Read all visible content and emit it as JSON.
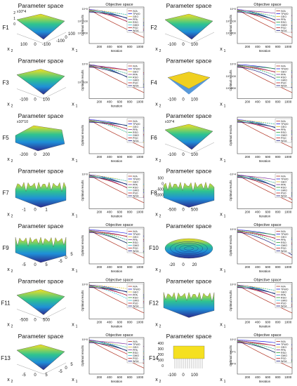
{
  "legend": [
    "IVIA",
    "TFWO",
    "GEO",
    "PPA",
    "RSO",
    "GWO",
    "PSO",
    "WOA"
  ],
  "colors": {
    "IVIA": "#b03020",
    "TFWO": "#2020e0",
    "GEO": "#e0c020",
    "PPA": "#8030a0",
    "RSO": "#30a030",
    "GWO": "#20c0e0",
    "PSO": "#c02020",
    "WOA": "#1a1a80"
  },
  "chart_data": [
    {
      "function": "F1",
      "surface_title": "Parameter space",
      "objective_title": "Objective space",
      "zscale": "x10^4",
      "zticks": [
        "2",
        "1",
        "0"
      ],
      "xticks": [
        "100",
        "0",
        "-100"
      ],
      "yticks": [
        "-100",
        "0",
        "100"
      ],
      "xlabel": "x2",
      "ylabel": "x1",
      "ytick_labels": [
        "10^0",
        "10^-100",
        "10^-200"
      ],
      "xtick_labels": [
        "200",
        "400",
        "600",
        "800",
        "1000"
      ],
      "ylabel_obj": "Optimal results",
      "xlabel_obj": "Iteration",
      "show_legend": true
    },
    {
      "function": "F2",
      "surface_title": "Parameter space",
      "objective_title": "Objective space",
      "zscale": "",
      "zticks": [],
      "xticks": [
        "-100",
        "0",
        "100"
      ],
      "yticks": [],
      "xlabel": "x2",
      "ylabel": "x1",
      "ytick_labels": [
        "10^0",
        "10^-100",
        "10^-200"
      ],
      "xtick_labels": [
        "200",
        "400",
        "600",
        "800",
        "1000"
      ],
      "ylabel_obj": "Optimal results",
      "xlabel_obj": "Iteration",
      "show_legend": true
    },
    {
      "function": "F3",
      "surface_title": "Parameter space",
      "objective_title": "",
      "zscale": "",
      "zticks": [],
      "xticks": [
        "-100",
        "0",
        "100"
      ],
      "yticks": [],
      "xlabel": "x2",
      "ylabel": "x1",
      "ytick_labels": [
        "10^0",
        "10^-100"
      ],
      "xtick_labels": [
        "200",
        "400",
        "600",
        "800",
        "1000"
      ],
      "ylabel_obj": "Optimal results",
      "xlabel_obj": "Iteration",
      "show_legend": true
    },
    {
      "function": "F4",
      "surface_title": "Parameter space",
      "objective_title": "",
      "zscale": "",
      "zticks": [],
      "xticks": [
        "-100",
        "0",
        "100"
      ],
      "yticks": [],
      "xlabel": "x2",
      "ylabel": "x1",
      "ytick_labels": [
        "10^0",
        "10^-100",
        "10^-200"
      ],
      "xtick_labels": [
        "200",
        "400",
        "600",
        "800",
        "1000"
      ],
      "ylabel_obj": "Optimal results",
      "xlabel_obj": "",
      "show_legend": true
    },
    {
      "function": "F5",
      "surface_title": "Parameter space",
      "objective_title": "",
      "zscale": "x10^10",
      "zticks": [],
      "xticks": [
        "-200",
        "0",
        "200"
      ],
      "yticks": [],
      "xlabel": "x2",
      "ylabel": "x1",
      "ytick_labels": [],
      "xtick_labels": [
        "200",
        "400",
        "600",
        "800",
        "1000"
      ],
      "ylabel_obj": "Optimal results",
      "xlabel_obj": "Iteration",
      "show_legend": true
    },
    {
      "function": "F6",
      "surface_title": "Parameter space",
      "objective_title": "",
      "zscale": "x10^4",
      "zticks": [],
      "xticks": [
        "-100",
        "0",
        "100"
      ],
      "yticks": [],
      "xlabel": "x2",
      "ylabel": "x1",
      "ytick_labels": [],
      "xtick_labels": [
        "200",
        "400",
        "600",
        "800",
        "1000"
      ],
      "ylabel_obj": "Optimal results",
      "xlabel_obj": "Iteration",
      "show_legend": true
    },
    {
      "function": "F7",
      "surface_title": "Parameter space",
      "objective_title": "",
      "zscale": "",
      "zticks": [],
      "xticks": [
        "-1",
        "0",
        "1"
      ],
      "yticks": [],
      "xlabel": "x2",
      "ylabel": "x1",
      "ytick_labels": [
        "10^0"
      ],
      "xtick_labels": [
        "200",
        "400",
        "600",
        "800",
        "1000"
      ],
      "ylabel_obj": "Optimal results",
      "xlabel_obj": "Iteration",
      "show_legend": true
    },
    {
      "function": "F8",
      "surface_title": "Parameter space",
      "objective_title": "",
      "zscale": "",
      "zticks": [
        "500",
        "0",
        "-500",
        "-1000"
      ],
      "xticks": [
        "-500",
        "0",
        "500"
      ],
      "yticks": [],
      "xlabel": "x2",
      "ylabel": "x1",
      "ytick_labels": [
        "-10^4"
      ],
      "xtick_labels": [
        "200",
        "400",
        "600",
        "800",
        "1000"
      ],
      "ylabel_obj": "Optimal results",
      "xlabel_obj": "Iteration",
      "show_legend": true
    },
    {
      "function": "F9",
      "surface_title": "Parameter space",
      "objective_title": "Objective space",
      "zscale": "",
      "zticks": [],
      "xticks": [
        "-5",
        "0",
        "5"
      ],
      "yticks": [
        "-5",
        "0",
        "5"
      ],
      "xlabel": "x2",
      "ylabel": "x1",
      "ytick_labels": [],
      "xtick_labels": [
        "200",
        "400",
        "600",
        "800",
        "1000"
      ],
      "ylabel_obj": "Optimal results",
      "xlabel_obj": "Iteration",
      "show_legend": true
    },
    {
      "function": "F10",
      "surface_title": "Parameter space",
      "objective_title": "Objective space",
      "zscale": "",
      "zticks": [],
      "xticks": [
        "-20",
        "0",
        "20"
      ],
      "yticks": [],
      "xlabel": "x2",
      "ylabel": "x1",
      "ytick_labels": [
        "10^0"
      ],
      "xtick_labels": [
        "200",
        "400",
        "600",
        "800",
        "1000"
      ],
      "ylabel_obj": "Optimal results",
      "xlabel_obj": "Iteration",
      "show_legend": true
    },
    {
      "function": "F11",
      "surface_title": "Parameter space",
      "objective_title": "Objective space",
      "zscale": "",
      "zticks": [],
      "xticks": [
        "-500",
        "0",
        "500"
      ],
      "yticks": [],
      "xlabel": "x2",
      "ylabel": "x1",
      "ytick_labels": [
        "10^0"
      ],
      "xtick_labels": [
        "200",
        "400",
        "600",
        "800",
        "1000"
      ],
      "ylabel_obj": "Optimal results",
      "xlabel_obj": "Iteration",
      "show_legend": true
    },
    {
      "function": "F12",
      "surface_title": "Parameter space",
      "objective_title": "Objective space",
      "zscale": "",
      "zticks": [],
      "xticks": [],
      "yticks": [],
      "xlabel": "x2",
      "ylabel": "x1",
      "ytick_labels": [
        "10^0"
      ],
      "xtick_labels": [
        "200",
        "400",
        "600",
        "800",
        "1000"
      ],
      "ylabel_obj": "Optimal results",
      "xlabel_obj": "Iteration",
      "show_legend": true
    },
    {
      "function": "F13",
      "surface_title": "Parameter space",
      "objective_title": "Objective space",
      "zscale": "",
      "zticks": [],
      "xticks": [
        "-5",
        "0",
        "5"
      ],
      "yticks": [
        "-5",
        "0",
        "5"
      ],
      "xlabel": "x2",
      "ylabel": "x1",
      "ytick_labels": [
        "10^0"
      ],
      "xtick_labels": [
        "200",
        "400",
        "600",
        "800",
        "1000"
      ],
      "ylabel_obj": "Optimal results",
      "xlabel_obj": "Iteration",
      "show_legend": true
    },
    {
      "function": "F14",
      "surface_title": "Parameter space",
      "objective_title": "Objective space",
      "zscale": "",
      "zticks": [
        "400",
        "300",
        "200",
        "100",
        "0"
      ],
      "xticks": [
        "-100",
        "0",
        "100"
      ],
      "yticks": [],
      "xlabel": "x2",
      "ylabel": "x1",
      "ytick_labels": [
        "10^2",
        "10^1",
        "10^0"
      ],
      "xtick_labels": [
        "200",
        "400",
        "600",
        "800",
        "1000"
      ],
      "ylabel_obj": "Optimal results",
      "xlabel_obj": "Iteration",
      "show_legend": true
    }
  ]
}
